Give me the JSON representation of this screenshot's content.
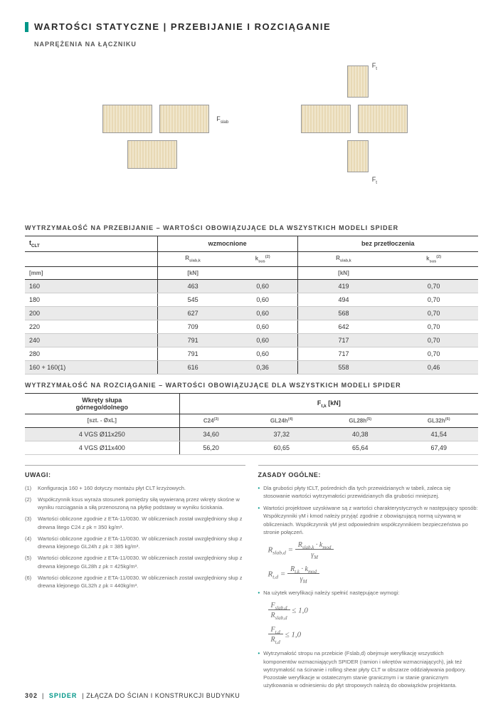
{
  "header": {
    "title": "WARTOŚCI STATYCZNE | PRZEBIJANIE I ROZCIĄGANIE",
    "subtitle": "NAPRĘŻENIA NA ŁĄCZNIKU"
  },
  "diagram_labels": {
    "fslab": "Fslab",
    "ft_top": "Ft",
    "ft_bot": "Ft"
  },
  "table1": {
    "title": "WYTRZYMAŁOŚĆ NA PRZEBIJANIE – WARTOŚCI OBOWIĄZUJĄCE DLA WSZYSTKICH MODELI SPIDER",
    "head": {
      "tclt": "tCLT",
      "group1": "wzmocnione",
      "group2": "bez przetłoczenia",
      "r": "Rslab,k",
      "k": "ksus",
      "ksup": "(2)",
      "u_mm": "[mm]",
      "u_kn": "[kN]"
    },
    "rows": [
      {
        "t": "160",
        "r1": "463",
        "k1": "0,60",
        "r2": "419",
        "k2": "0,70",
        "shaded": true
      },
      {
        "t": "180",
        "r1": "545",
        "k1": "0,60",
        "r2": "494",
        "k2": "0,70",
        "shaded": false
      },
      {
        "t": "200",
        "r1": "627",
        "k1": "0,60",
        "r2": "568",
        "k2": "0,70",
        "shaded": true
      },
      {
        "t": "220",
        "r1": "709",
        "k1": "0,60",
        "r2": "642",
        "k2": "0,70",
        "shaded": false
      },
      {
        "t": "240",
        "r1": "791",
        "k1": "0,60",
        "r2": "717",
        "k2": "0,70",
        "shaded": true
      },
      {
        "t": "280",
        "r1": "791",
        "k1": "0,60",
        "r2": "717",
        "k2": "0,70",
        "shaded": false
      },
      {
        "t": "160 + 160(1)",
        "r1": "616",
        "k1": "0,36",
        "r2": "558",
        "k2": "0,46",
        "shaded": true
      }
    ]
  },
  "table2": {
    "title": "WYTRZYMAŁOŚĆ NA ROZCIĄGANIE – WARTOŚCI OBOWIĄZUJĄCE DLA WSZYSTKICH MODELI SPIDER",
    "head": {
      "col1a": "Wkręty słupa",
      "col1b": "górnego/dolnego",
      "col1c": "[szt. - ØxL]",
      "ftk": "Ft,k [kN]",
      "c24": "C24",
      "c24s": "(3)",
      "gl24": "GL24h",
      "gl24s": "(4)",
      "gl28": "GL28h",
      "gl28s": "(5)",
      "gl32": "GL32h",
      "gl32s": "(6)"
    },
    "rows": [
      {
        "a": "4 VGS Ø11x250",
        "b": "34,60",
        "c": "37,32",
        "d": "40,38",
        "e": "41,54",
        "shaded": true
      },
      {
        "a": "4 VGS Ø11x400",
        "b": "56,20",
        "c": "60,65",
        "d": "65,64",
        "e": "67,49",
        "shaded": false
      }
    ]
  },
  "notes": {
    "title": "UWAGI:",
    "items": [
      {
        "k": "(1)",
        "t": "Konfiguracja 160 + 160 dotyczy montażu płyt CLT krzyżowych."
      },
      {
        "k": "(2)",
        "t": "Współczynnik ksus wyraża stosunek pomiędzy siłą wywieraną przez wkręty skośne w wyniku rozciągania a siłą przenoszoną na płytkę podstawy w wyniku ściskania."
      },
      {
        "k": "(3)",
        "t": "Wartości obliczone zgodnie z ETA-11/0030. W obliczeniach został uwzględniony słup z drewna litego C24 z ρk = 350 kg/m³."
      },
      {
        "k": "(4)",
        "t": "Wartości obliczone zgodnie z ETA-11/0030. W obliczeniach został uwzględniony słup z drewna klejonego GL24h z ρk = 385 kg/m³."
      },
      {
        "k": "(5)",
        "t": "Wartości obliczone zgodnie z ETA-11/0030. W obliczeniach został uwzględniony słup z drewna klejonego GL28h z ρk = 425kg/m³."
      },
      {
        "k": "(6)",
        "t": "Wartości obliczone zgodnie z ETA-11/0030. W obliczeniach został uwzględniony słup z drewna klejonego GL32h z ρk = 440kg/m³."
      }
    ]
  },
  "rules": {
    "title": "ZASADY OGÓLNE:",
    "r1": "Dla grubości płyty tCLT, pośrednich dla tych przewidzianych w tabeli, zaleca się stosowanie wartości wytrzymałości przewidzianych dla grubości mniejszej.",
    "r2": "Wartości projektowe uzyskiwane są z wartości charakterystycznych w następujący sposób: Współczynniki γM i kmod należy przyjąć zgodnie z obowiązującą normą używaną w obliczeniach. Współczynnik γM jest odpowiednim współczynnikiem bezpieczeństwa po stronie połączeń.",
    "r3": "Na użytek weryfikacji należy spełnić następujące wymogi:",
    "r4": "Wytrzymałość stropu na przebicie (Fslab,d) obejmuje weryfikację wszystkich komponentów wzmacniających SPIDER (ramion i wkrętów wzmacniających), jak też wytrzymałość na ścinanie i rolling shear płyty CLT w obszarze oddziaływania podpory. Pozostałe weryfikacje w ostatecznym stanie granicznym i w stanie granicznym użytkowania w odniesieniu do płyt stropowych należą do obowiązków projektanta."
  },
  "footer": {
    "page": "302",
    "product": "SPIDER",
    "rest": "| ZŁĄCZA DO ŚCIAN  I KONSTRUKCJI BUDYNKU"
  }
}
